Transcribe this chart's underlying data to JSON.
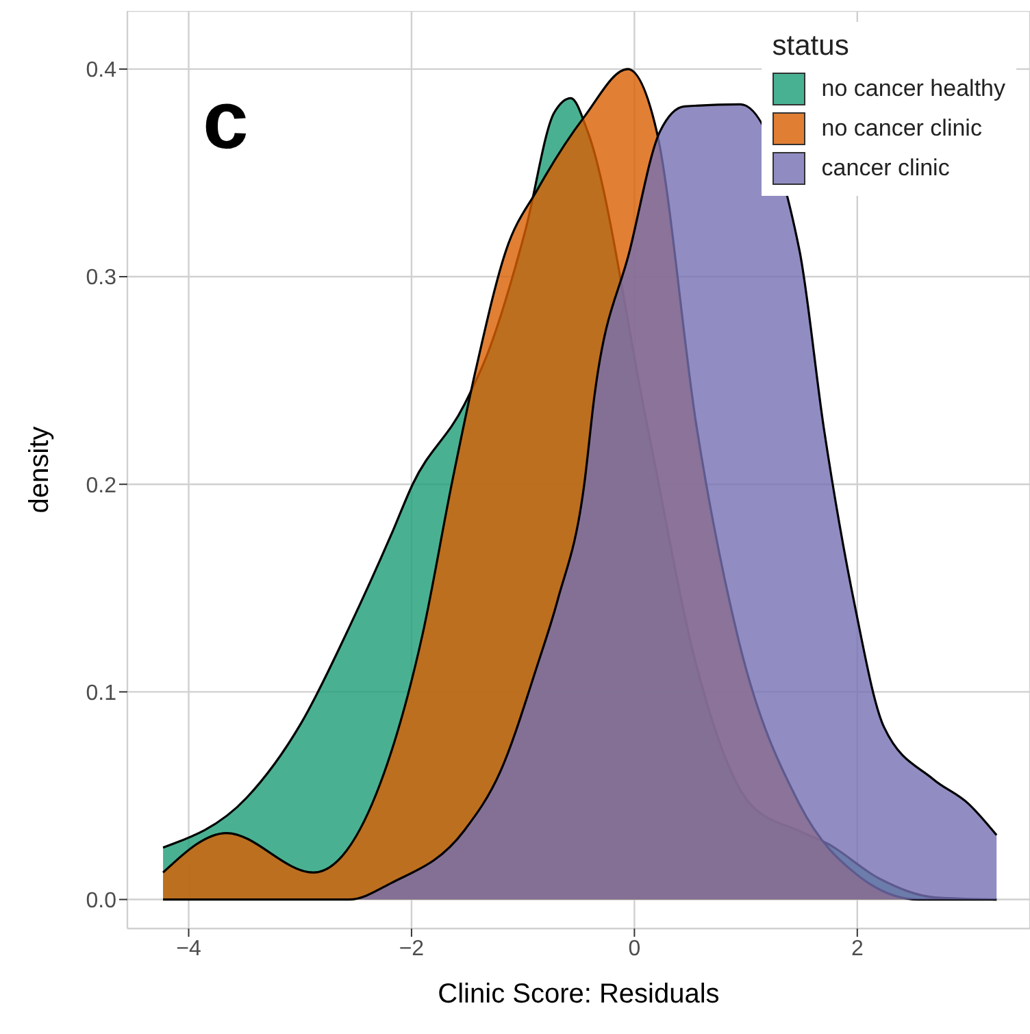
{
  "chart_data": {
    "type": "area",
    "xlabel": "Clinic Score: Residuals",
    "ylabel": "density",
    "legend_title": "status",
    "annotations": [
      "c"
    ],
    "xlim": [
      -4.55,
      3.55
    ],
    "xticks": [
      -4,
      -2,
      0,
      2
    ],
    "ylim": [
      -0.014,
      0.428
    ],
    "yticks": [
      {
        "value": 0,
        "label": "0.0"
      },
      {
        "value": 0.1,
        "label": "0.1"
      },
      {
        "value": 0.2,
        "label": "0.2"
      },
      {
        "value": 0.3,
        "label": "0.3"
      },
      {
        "value": 0.4,
        "label": "0.4"
      }
    ],
    "grid": true,
    "legend": "top right",
    "series": [
      {
        "name": "no cancer healthy",
        "color": "#1b9e77",
        "x": [
          -4.23,
          -3.48,
          -2.99,
          -2.56,
          -2.18,
          -1.99,
          -1.53,
          -1.31,
          -0.98,
          -0.72,
          -0.57,
          -0.42,
          0.12,
          0.56,
          1.04,
          1.48,
          1.73,
          2.2,
          2.7,
          3.25
        ],
        "values": [
          0.025,
          0.049,
          0.085,
          0.131,
          0.176,
          0.2,
          0.238,
          0.264,
          0.322,
          0.379,
          0.386,
          0.37,
          0.227,
          0.112,
          0.046,
          0.033,
          0.027,
          0.01,
          0.001,
          0
        ]
      },
      {
        "name": "no cancer clinic",
        "color": "#d95f02",
        "x": [
          -4.23,
          -3.66,
          -2.88,
          -2.28,
          -1.9,
          -1.64,
          -1.42,
          -1.15,
          -0.87,
          -0.45,
          -0.06,
          0.2,
          0.56,
          0.93,
          1.48,
          2.02,
          2.55,
          3.25
        ],
        "values": [
          0.013,
          0.032,
          0.013,
          0.056,
          0.128,
          0.2,
          0.256,
          0.313,
          0.342,
          0.377,
          0.4,
          0.37,
          0.227,
          0.126,
          0.046,
          0.011,
          0,
          0
        ]
      },
      {
        "name": "cancer clinic",
        "color": "#7570b3",
        "x": [
          -4.23,
          -2.56,
          -2.18,
          -1.53,
          -1.2,
          -0.87,
          -0.69,
          -0.45,
          -0.36,
          -0.04,
          0.23,
          0.45,
          0.95,
          1.32,
          1.48,
          1.7,
          1.98,
          2.24,
          2.68,
          3.0,
          3.25
        ],
        "values": [
          0,
          0,
          0.008,
          0.033,
          0.062,
          0.113,
          0.144,
          0.2,
          0.242,
          0.313,
          0.37,
          0.382,
          0.383,
          null,
          0.313,
          0.227,
          0.141,
          0.083,
          0.058,
          0.046,
          0.031
        ]
      }
    ]
  }
}
